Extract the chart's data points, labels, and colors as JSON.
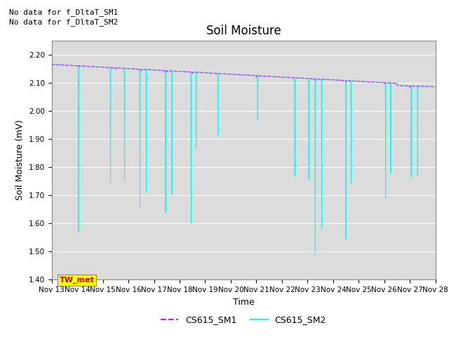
{
  "title": "Soil Moisture",
  "ylabel": "Soil Moisture (mV)",
  "xlabel": "Time",
  "annotations_top_left": [
    "No data for f_DltaT_SM1",
    "No data for f_DltaT_SM2"
  ],
  "tw_met_label": "TW_met",
  "tw_met_color_bg": "#FFFF00",
  "tw_met_color_fg": "#CC0000",
  "ylim": [
    1.4,
    2.25
  ],
  "yticks": [
    1.4,
    1.5,
    1.6,
    1.7,
    1.8,
    1.9,
    2.0,
    2.1,
    2.2
  ],
  "xtick_labels": [
    "Nov 13",
    "Nov 14",
    "Nov 15",
    "Nov 16",
    "Nov 17",
    "Nov 18",
    "Nov 19",
    "Nov 20",
    "Nov 21",
    "Nov 22",
    "Nov 23",
    "Nov 24",
    "Nov 25",
    "Nov 26",
    "Nov 27",
    "Nov 28"
  ],
  "legend": [
    {
      "label": "CS615_SM1",
      "color": "#FF00FF",
      "linestyle": "--"
    },
    {
      "label": "CS615_SM2",
      "color": "#00FFFF",
      "linestyle": "-"
    }
  ],
  "background_color": "#DCDCDC",
  "grid_color": "#FFFFFF",
  "title_fontsize": 12,
  "axis_label_fontsize": 9,
  "tick_fontsize": 7.5,
  "annotation_fontsize": 8,
  "tw_met_fontsize": 8
}
